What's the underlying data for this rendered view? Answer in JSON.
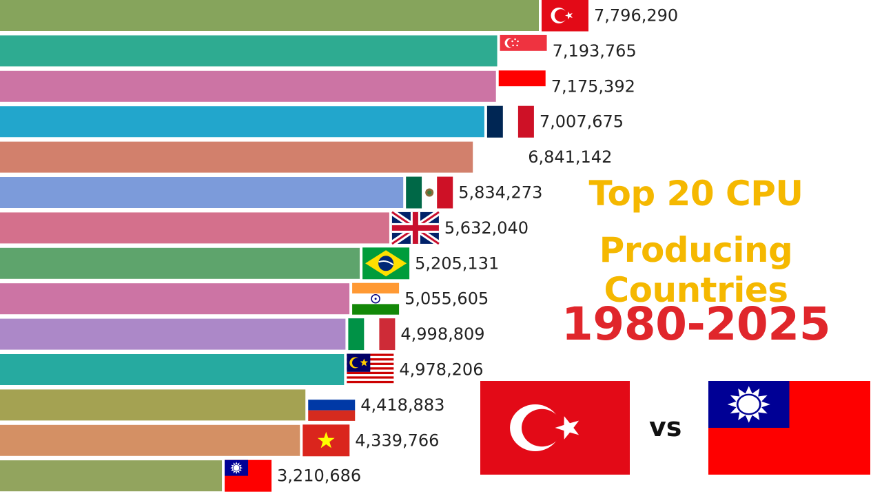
{
  "title_line1": "Top 20 CPU",
  "title_line2": "Producing Countries",
  "years": "1980-2025",
  "vs_label": "vs",
  "colors": {
    "title": "#f5b800",
    "years": "#e0262b"
  },
  "comparison": {
    "left_flag": "turkey",
    "right_flag": "taiwan"
  },
  "chart_data": {
    "type": "bar",
    "orientation": "horizontal",
    "xlim": [
      0,
      7796290
    ],
    "bars": [
      {
        "value": 7796290,
        "label": "7,796,290",
        "flag": "turkey",
        "color": "#86a45c"
      },
      {
        "value": 7193765,
        "label": "7,193,765",
        "flag": "singapore",
        "color": "#2eab91"
      },
      {
        "value": 7175392,
        "label": "7,175,392",
        "flag": "indonesia",
        "color": "#cc74a4"
      },
      {
        "value": 7007675,
        "label": "7,007,675",
        "flag": "france",
        "color": "#22a6cc"
      },
      {
        "value": 6841142,
        "label": "6,841,142",
        "flag": "none",
        "color": "#d2806c"
      },
      {
        "value": 5834273,
        "label": "5,834,273",
        "flag": "mexico",
        "color": "#7c9bda"
      },
      {
        "value": 5632040,
        "label": "5,632,040",
        "flag": "uk",
        "color": "#d4708c"
      },
      {
        "value": 5205131,
        "label": "5,205,131",
        "flag": "brazil",
        "color": "#5ea46c"
      },
      {
        "value": 5055605,
        "label": "5,055,605",
        "flag": "india",
        "color": "#cc74a4"
      },
      {
        "value": 4998809,
        "label": "4,998,809",
        "flag": "italy",
        "color": "#ac88c8"
      },
      {
        "value": 4978206,
        "label": "4,978,206",
        "flag": "malaysia",
        "color": "#26aaa0"
      },
      {
        "value": 4418883,
        "label": "4,418,883",
        "flag": "russia",
        "color": "#a4a252"
      },
      {
        "value": 4339766,
        "label": "4,339,766",
        "flag": "vietnam",
        "color": "#d49064"
      },
      {
        "value": 3210686,
        "label": "3,210,686",
        "flag": "taiwan",
        "color": "#92a45e"
      }
    ]
  }
}
